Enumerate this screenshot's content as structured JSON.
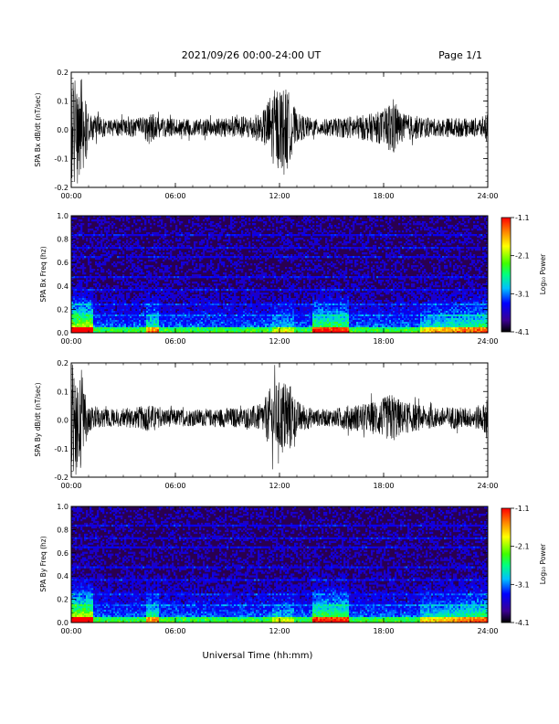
{
  "page": {
    "title": "2021/09/26  00:00-24:00 UT",
    "page_label": "Page 1/1",
    "xlabel": "Universal Time (hh:mm)"
  },
  "colors": {
    "trace": "#000000",
    "spectrogram_low": "#2a0050",
    "spectrogram_mid": "#3f00a0",
    "colormap": [
      "#000000",
      "#3b0090",
      "#0000ff",
      "#00c0ff",
      "#00ff80",
      "#40ff00",
      "#ffff00",
      "#ff8000",
      "#ff0000"
    ]
  },
  "chart_data": [
    {
      "type": "line",
      "ylabel": "SPA Bx dB/dt (nT/sec)",
      "x_ticks": [
        "00:00",
        "06:00",
        "12:00",
        "18:00",
        "24:00"
      ],
      "y_ticks": [
        "0.2",
        "0.1",
        "0.0",
        "-0.1",
        "-0.2"
      ],
      "xlim": [
        0,
        24
      ],
      "ylim": [
        -0.2,
        0.2
      ],
      "x_unit": "hours UT",
      "envelope_x": [
        0,
        0.5,
        1,
        2,
        3,
        4,
        4.5,
        5,
        6,
        7,
        8,
        9,
        10,
        11,
        11.5,
        12,
        12.5,
        13,
        14,
        15,
        16,
        17,
        18,
        18.5,
        19,
        20,
        21,
        22,
        23,
        23.8,
        24
      ],
      "envelope_amp": [
        0.2,
        0.2,
        0.05,
        0.03,
        0.03,
        0.035,
        0.06,
        0.035,
        0.03,
        0.03,
        0.03,
        0.035,
        0.04,
        0.05,
        0.12,
        0.15,
        0.13,
        0.05,
        0.03,
        0.03,
        0.04,
        0.045,
        0.06,
        0.11,
        0.05,
        0.04,
        0.03,
        0.035,
        0.03,
        0.04,
        0.07
      ]
    },
    {
      "type": "heatmap",
      "ylabel": "SPA Bx Freq (hz)",
      "x_ticks": [
        "00:00",
        "06:00",
        "12:00",
        "18:00",
        "24:00"
      ],
      "y_ticks": [
        "1.0",
        "0.8",
        "0.6",
        "0.4",
        "0.2",
        "0.0"
      ],
      "xlim": [
        0,
        24
      ],
      "ylim": [
        0,
        1.0
      ],
      "colorbar": {
        "label": "Log₁₀ Power",
        "ticks": [
          "-1.1",
          "-2.1",
          "-3.1",
          "-4.1"
        ],
        "range": [
          -4.1,
          -1.1
        ]
      }
    },
    {
      "type": "line",
      "ylabel": "SPA By dB/dt (nT/sec)",
      "x_ticks": [
        "00:00",
        "06:00",
        "12:00",
        "18:00",
        "24:00"
      ],
      "y_ticks": [
        "0.2",
        "0.1",
        "0.0",
        "-0.1",
        "-0.2"
      ],
      "xlim": [
        0,
        24
      ],
      "ylim": [
        -0.2,
        0.2
      ],
      "x_unit": "hours UT",
      "envelope_x": [
        0,
        0.5,
        1,
        2,
        3,
        4,
        4.5,
        5,
        6,
        7,
        8,
        9,
        10,
        11,
        11.5,
        12,
        12.5,
        13,
        14,
        15,
        16,
        17,
        18,
        18.5,
        19,
        20,
        21,
        22,
        23,
        23.8,
        24
      ],
      "envelope_amp": [
        0.2,
        0.2,
        0.05,
        0.03,
        0.035,
        0.04,
        0.05,
        0.035,
        0.03,
        0.03,
        0.03,
        0.035,
        0.035,
        0.05,
        0.11,
        0.13,
        0.14,
        0.06,
        0.03,
        0.03,
        0.045,
        0.05,
        0.07,
        0.09,
        0.06,
        0.045,
        0.035,
        0.04,
        0.035,
        0.05,
        0.11
      ]
    },
    {
      "type": "heatmap",
      "ylabel": "SPA By Freq (hz)",
      "x_ticks": [
        "00:00",
        "06:00",
        "12:00",
        "18:00",
        "24:00"
      ],
      "y_ticks": [
        "1.0",
        "0.8",
        "0.6",
        "0.4",
        "0.2",
        "0.0"
      ],
      "xlim": [
        0,
        24
      ],
      "ylim": [
        0,
        1.0
      ],
      "colorbar": {
        "label": "Log₁₀ Power",
        "ticks": [
          "-1.1",
          "-2.1",
          "-3.1",
          "-4.1"
        ],
        "range": [
          -4.1,
          -1.1
        ]
      }
    }
  ]
}
